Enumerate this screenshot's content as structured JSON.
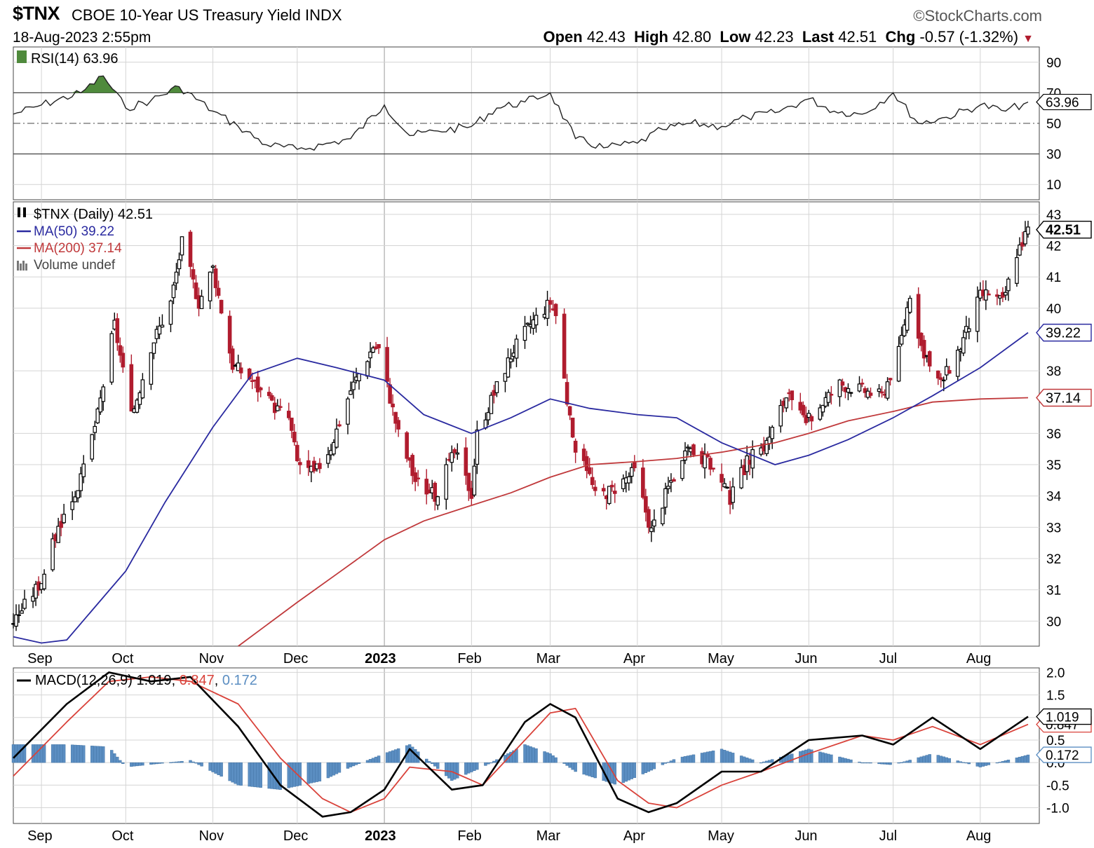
{
  "header": {
    "symbol": "$TNX",
    "description": "CBOE 10-Year US Treasury Yield",
    "exchange": "INDX",
    "datetime": "18-Aug-2023 2:55pm",
    "brand": "©StockCharts.com",
    "open_label": "Open",
    "open": "42.43",
    "high_label": "High",
    "high": "42.80",
    "low_label": "Low",
    "low": "42.23",
    "last_label": "Last",
    "last": "42.51",
    "chg_label": "Chg",
    "chg": "-0.57 (-1.32%)",
    "chg_arrow": "▼"
  },
  "colors": {
    "up": "#000000",
    "down": "#b01c2e",
    "ma50": "#2a2aa0",
    "ma200": "#c0393b",
    "macd_line": "#000000",
    "signal_line": "#d9423a",
    "histogram": "#5b8ec2",
    "rsi_fill": "#4f8a3c",
    "grid": "#d4d4d4"
  },
  "chart_data": [
    {
      "type": "line",
      "panel": "rsi",
      "legend": "RSI(14) 63.96",
      "current_value": "63.96",
      "y_ticks": [
        "90",
        "70",
        "50",
        "30",
        "10"
      ],
      "ylim": [
        0,
        100
      ],
      "reference_lines": [
        70,
        50,
        30
      ],
      "series": [
        {
          "name": "RSI(14)",
          "x": [
            "2022-08-22",
            "2022-09-01",
            "2022-09-15",
            "2022-09-23",
            "2022-10-01",
            "2022-10-10",
            "2022-10-20",
            "2022-11-01",
            "2022-11-10",
            "2022-11-20",
            "2022-12-01",
            "2022-12-10",
            "2022-12-20",
            "2023-01-01",
            "2023-01-10",
            "2023-01-20",
            "2023-02-01",
            "2023-02-10",
            "2023-02-20",
            "2023-03-01",
            "2023-03-10",
            "2023-03-20",
            "2023-04-01",
            "2023-04-10",
            "2023-04-20",
            "2023-05-01",
            "2023-05-10",
            "2023-05-20",
            "2023-06-01",
            "2023-06-10",
            "2023-06-20",
            "2023-07-01",
            "2023-07-10",
            "2023-07-20",
            "2023-08-01",
            "2023-08-10",
            "2023-08-18"
          ],
          "values": [
            56,
            62,
            70,
            81,
            60,
            65,
            74,
            58,
            48,
            36,
            33,
            36,
            40,
            62,
            42,
            45,
            48,
            60,
            64,
            70,
            40,
            34,
            37,
            46,
            50,
            48,
            54,
            57,
            66,
            58,
            56,
            70,
            50,
            54,
            62,
            58,
            63.96
          ]
        }
      ]
    },
    {
      "type": "candlestick",
      "panel": "price",
      "legend": [
        "$TNX (Daily) 42.51",
        "MA(50) 39.22",
        "MA(200) 37.14",
        "Volume undef"
      ],
      "last_value": "42.51",
      "ma50_value": "39.22",
      "ma200_value": "37.14",
      "ylim": [
        29.2,
        43.4
      ],
      "y_ticks": [
        "43",
        "42",
        "41",
        "40",
        "38",
        "36",
        "35",
        "34",
        "33",
        "32",
        "31",
        "30"
      ],
      "x_labels": [
        "Sep",
        "Oct",
        "Nov",
        "Dec",
        "2023",
        "Feb",
        "Mar",
        "Apr",
        "May",
        "Jun",
        "Jul",
        "Aug"
      ],
      "x_label_dates": [
        "2022-09-01",
        "2022-10-01",
        "2022-11-01",
        "2022-12-01",
        "2023-01-01",
        "2023-02-01",
        "2023-03-01",
        "2023-04-01",
        "2023-05-01",
        "2023-06-01",
        "2023-07-01",
        "2023-08-01"
      ],
      "x_range": [
        "2022-08-22",
        "2023-08-22"
      ],
      "anchors": {
        "x": [
          "2022-08-22",
          "2022-09-01",
          "2022-09-07",
          "2022-09-15",
          "2022-09-21",
          "2022-09-27",
          "2022-10-03",
          "2022-10-10",
          "2022-10-17",
          "2022-10-21",
          "2022-10-27",
          "2022-11-01",
          "2022-11-08",
          "2022-11-14",
          "2022-11-21",
          "2022-11-28",
          "2022-12-01",
          "2022-12-07",
          "2022-12-13",
          "2022-12-20",
          "2022-12-28",
          "2022-12-30",
          "2023-01-06",
          "2023-01-12",
          "2023-01-19",
          "2023-01-26",
          "2023-02-01",
          "2023-02-03",
          "2023-02-10",
          "2023-02-16",
          "2023-02-22",
          "2023-03-01",
          "2023-03-03",
          "2023-03-09",
          "2023-03-13",
          "2023-03-17",
          "2023-03-23",
          "2023-03-31",
          "2023-04-06",
          "2023-04-13",
          "2023-04-20",
          "2023-04-27",
          "2023-05-04",
          "2023-05-10",
          "2023-05-17",
          "2023-05-24",
          "2023-05-31",
          "2023-06-06",
          "2023-06-12",
          "2023-06-20",
          "2023-06-27",
          "2023-07-03",
          "2023-07-07",
          "2023-07-12",
          "2023-07-18",
          "2023-07-25",
          "2023-08-01",
          "2023-08-04",
          "2023-08-09",
          "2023-08-14",
          "2023-08-18"
        ],
        "close": [
          30.0,
          31.3,
          33.0,
          34.5,
          36.6,
          39.5,
          36.5,
          38.8,
          40.2,
          42.1,
          40.2,
          41.3,
          38.2,
          37.8,
          37.0,
          36.5,
          35.1,
          34.7,
          35.6,
          37.4,
          38.8,
          38.7,
          36.0,
          34.5,
          34.0,
          35.4,
          34.1,
          36.0,
          37.5,
          38.7,
          39.5,
          40.2,
          39.8,
          35.7,
          35.3,
          34.0,
          34.2,
          34.8,
          32.9,
          34.5,
          35.5,
          35.0,
          33.9,
          35.1,
          35.7,
          37.2,
          36.3,
          37.0,
          37.6,
          37.4,
          37.2,
          38.6,
          40.5,
          38.4,
          37.6,
          38.8,
          40.4,
          40.5,
          40.2,
          41.8,
          42.51
        ]
      },
      "series": [
        {
          "name": "MA(50)",
          "x": [
            "2022-08-22",
            "2022-09-01",
            "2022-09-10",
            "2022-10-01",
            "2022-10-15",
            "2022-11-01",
            "2022-11-15",
            "2022-12-01",
            "2022-12-15",
            "2023-01-01",
            "2023-01-15",
            "2023-02-01",
            "2023-02-15",
            "2023-03-01",
            "2023-03-15",
            "2023-04-01",
            "2023-04-15",
            "2023-05-01",
            "2023-05-20",
            "2023-06-01",
            "2023-06-15",
            "2023-07-01",
            "2023-07-15",
            "2023-08-01",
            "2023-08-18"
          ],
          "values": [
            29.5,
            29.3,
            29.4,
            31.6,
            33.8,
            36.2,
            37.9,
            38.4,
            38.1,
            37.7,
            36.6,
            36.0,
            36.5,
            37.1,
            36.8,
            36.6,
            36.5,
            35.7,
            35.0,
            35.3,
            35.8,
            36.5,
            37.2,
            38.1,
            39.22
          ]
        },
        {
          "name": "MA(200)",
          "x": [
            "2022-11-10",
            "2022-12-01",
            "2022-12-15",
            "2023-01-01",
            "2023-01-15",
            "2023-02-01",
            "2023-02-15",
            "2023-03-01",
            "2023-03-15",
            "2023-04-01",
            "2023-04-15",
            "2023-05-01",
            "2023-05-20",
            "2023-06-01",
            "2023-06-15",
            "2023-07-01",
            "2023-07-15",
            "2023-08-01",
            "2023-08-18"
          ],
          "values": [
            29.2,
            30.6,
            31.5,
            32.6,
            33.2,
            33.7,
            34.1,
            34.6,
            35.0,
            35.1,
            35.2,
            35.4,
            35.7,
            36.0,
            36.4,
            36.7,
            37.0,
            37.1,
            37.14
          ]
        }
      ]
    },
    {
      "type": "line",
      "panel": "macd",
      "legend": {
        "label": "MACD(12,26,9)",
        "macd": "1.019",
        "signal": "0.847",
        "histogram": "0.172"
      },
      "y_ticks": [
        "2.0",
        "1.5",
        "1.0",
        "0.5",
        "0.0",
        "-0.5",
        "-1.0"
      ],
      "ylim": [
        -1.35,
        2.1
      ],
      "series": [
        {
          "name": "MACD",
          "x": [
            "2022-08-22",
            "2022-09-10",
            "2022-09-25",
            "2022-10-10",
            "2022-10-24",
            "2022-11-10",
            "2022-11-25",
            "2022-12-10",
            "2022-12-20",
            "2023-01-01",
            "2023-01-10",
            "2023-01-25",
            "2023-02-05",
            "2023-02-20",
            "2023-03-01",
            "2023-03-10",
            "2023-03-25",
            "2023-04-05",
            "2023-04-15",
            "2023-05-01",
            "2023-05-15",
            "2023-06-01",
            "2023-06-20",
            "2023-07-01",
            "2023-07-15",
            "2023-08-01",
            "2023-08-18"
          ],
          "values": [
            0.1,
            1.3,
            2.0,
            1.8,
            1.9,
            0.8,
            -0.5,
            -1.2,
            -1.1,
            -0.6,
            0.3,
            -0.6,
            -0.5,
            0.9,
            1.3,
            1.0,
            -0.8,
            -1.1,
            -0.9,
            -0.2,
            -0.2,
            0.5,
            0.6,
            0.4,
            1.0,
            0.3,
            1.019
          ]
        },
        {
          "name": "Signal",
          "x": [
            "2022-08-22",
            "2022-09-10",
            "2022-09-25",
            "2022-10-10",
            "2022-10-24",
            "2022-11-10",
            "2022-11-25",
            "2022-12-10",
            "2022-12-20",
            "2023-01-01",
            "2023-01-10",
            "2023-01-25",
            "2023-02-05",
            "2023-02-20",
            "2023-03-01",
            "2023-03-10",
            "2023-03-25",
            "2023-04-05",
            "2023-04-15",
            "2023-05-01",
            "2023-05-15",
            "2023-06-01",
            "2023-06-20",
            "2023-07-01",
            "2023-07-15",
            "2023-08-01",
            "2023-08-18"
          ],
          "values": [
            -0.3,
            0.9,
            1.8,
            1.9,
            1.8,
            1.3,
            0.1,
            -0.8,
            -1.1,
            -0.8,
            -0.1,
            -0.2,
            -0.5,
            0.5,
            1.1,
            1.2,
            -0.4,
            -0.9,
            -1.0,
            -0.5,
            -0.2,
            0.2,
            0.6,
            0.5,
            0.8,
            0.4,
            0.847
          ]
        },
        {
          "name": "Histogram",
          "x": [
            "2022-08-22",
            "2022-09-10",
            "2022-09-25",
            "2022-10-01",
            "2022-10-24",
            "2022-11-10",
            "2022-11-25",
            "2022-12-10",
            "2022-12-20",
            "2023-01-01",
            "2023-01-10",
            "2023-01-25",
            "2023-02-05",
            "2023-02-20",
            "2023-03-01",
            "2023-03-10",
            "2023-03-25",
            "2023-04-05",
            "2023-04-15",
            "2023-05-01",
            "2023-05-15",
            "2023-06-01",
            "2023-06-20",
            "2023-07-01",
            "2023-07-15",
            "2023-08-01",
            "2023-08-18"
          ],
          "values": [
            0.4,
            0.4,
            0.35,
            -0.1,
            0.05,
            -0.5,
            -0.6,
            -0.4,
            -0.1,
            0.2,
            0.4,
            -0.4,
            -0.1,
            0.4,
            0.2,
            -0.2,
            -0.5,
            -0.2,
            0.1,
            0.3,
            0.0,
            0.3,
            0.0,
            -0.05,
            0.2,
            -0.1,
            0.172
          ]
        }
      ]
    }
  ]
}
